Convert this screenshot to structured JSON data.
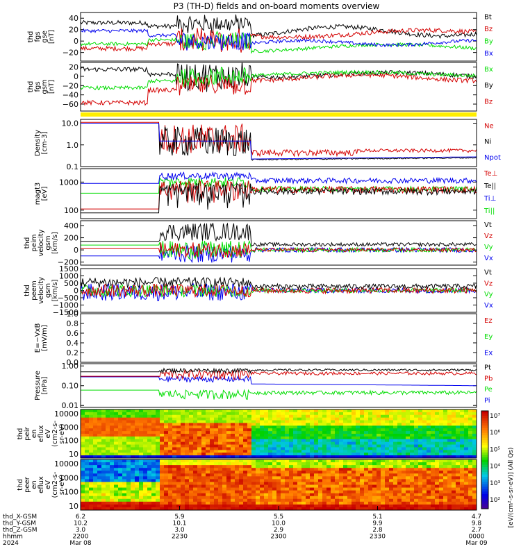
{
  "title": "P3 (TH-D) fields and on-board moments overview",
  "colors": {
    "black": "#000000",
    "red": "#d40000",
    "green": "#00dd00",
    "blue": "#0000ee",
    "yellow": "#ffee00"
  },
  "chart_data": [
    {
      "id": "fgs_gse",
      "type": "line",
      "ylabel": [
        "thd",
        "fgs",
        "gse",
        "[nT]"
      ],
      "yticks": [
        "40",
        "20",
        "0",
        "−20"
      ],
      "ylim": [
        -35,
        50
      ],
      "legend": [
        {
          "name": "Bt",
          "color": "black"
        },
        {
          "name": "Bz",
          "color": "red"
        },
        {
          "name": "By",
          "color": "green"
        },
        {
          "name": "Bx",
          "color": "blue"
        }
      ]
    },
    {
      "id": "fgs_gsm",
      "type": "line",
      "ylabel": [
        "thd",
        "fgs",
        "gsm",
        "[nT]"
      ],
      "yticks": [
        "20",
        "0",
        "−20",
        "−40",
        "−60"
      ],
      "ylim": [
        -75,
        30
      ],
      "legend": [
        {
          "name": "Bx",
          "color": "green"
        },
        {
          "name": "By",
          "color": "black"
        },
        {
          "name": "Bz",
          "color": "red"
        }
      ]
    },
    {
      "id": "density",
      "type": "line",
      "ylabel": [
        "Density",
        "[cm-3]"
      ],
      "log": true,
      "yticks": [
        "10.0",
        "1.0",
        "0.1"
      ],
      "ylim": [
        0.1,
        15
      ],
      "legend": [
        {
          "name": "Ne",
          "color": "red"
        },
        {
          "name": "Ni",
          "color": "black"
        },
        {
          "name": "Npot",
          "color": "blue"
        }
      ]
    },
    {
      "id": "temperature",
      "type": "line",
      "ylabel": [
        "magt3",
        "[eV]"
      ],
      "log": true,
      "yticks": [
        "1000",
        "100"
      ],
      "ylim": [
        50,
        3000
      ],
      "legend": [
        {
          "name": "Te⊥",
          "color": "red"
        },
        {
          "name": "Te||",
          "color": "black"
        },
        {
          "name": "Ti⊥",
          "color": "blue"
        },
        {
          "name": "Ti||",
          "color": "green"
        }
      ]
    },
    {
      "id": "ion_velocity",
      "type": "line",
      "ylabel": [
        "thd",
        "peim",
        "velocity",
        "gsm",
        "[km/s]"
      ],
      "yticks": [
        "400",
        "200",
        "0",
        "−200"
      ],
      "ylim": [
        -250,
        480
      ],
      "legend": [
        {
          "name": "Vt",
          "color": "black"
        },
        {
          "name": "Vz",
          "color": "red"
        },
        {
          "name": "Vy",
          "color": "green"
        },
        {
          "name": "Vx",
          "color": "blue"
        }
      ]
    },
    {
      "id": "electron_velocity",
      "type": "line",
      "ylabel": [
        "thd",
        "peem",
        "velocity",
        "gsm",
        "[km/s]"
      ],
      "yticks": [
        "1500",
        "1000",
        "500",
        "0",
        "−500",
        "−1000",
        "−1500"
      ],
      "ylim": [
        -1500,
        1500
      ],
      "legend": [
        {
          "name": "Vt",
          "color": "black"
        },
        {
          "name": "Vz",
          "color": "red"
        },
        {
          "name": "Vy",
          "color": "green"
        },
        {
          "name": "Vx",
          "color": "blue"
        }
      ]
    },
    {
      "id": "efield",
      "type": "line",
      "ylabel": [
        "E=−VxB",
        "[mV/m]"
      ],
      "yticks": [
        "1.0",
        "0.8",
        "0.6",
        "0.4",
        "0.2",
        "0.0"
      ],
      "ylim": [
        0,
        1
      ],
      "legend": [
        {
          "name": "Ez",
          "color": "red"
        },
        {
          "name": "Ey",
          "color": "green"
        },
        {
          "name": "Ex",
          "color": "blue"
        }
      ]
    },
    {
      "id": "pressure",
      "type": "line",
      "ylabel": [
        "Pressure",
        "[nPa]"
      ],
      "log": true,
      "yticks": [
        "1.00",
        "0.10",
        "0.01"
      ],
      "ylim": [
        0.008,
        1.3
      ],
      "legend": [
        {
          "name": "Pt",
          "color": "black"
        },
        {
          "name": "Pb",
          "color": "red"
        },
        {
          "name": "Pe",
          "color": "green"
        },
        {
          "name": "Pi",
          "color": "blue"
        }
      ]
    },
    {
      "id": "ion_spectrogram",
      "type": "heatmap",
      "ylabel": [
        "thd",
        "peir",
        "en",
        "eflux",
        "eV",
        "(cm2-s-",
        "sr-eV)"
      ],
      "log": true,
      "yticks": [
        "10000",
        "1000",
        "100",
        "10"
      ],
      "ylim": [
        5,
        20000
      ]
    },
    {
      "id": "electron_spectrogram",
      "type": "heatmap",
      "ylabel": [
        "thd",
        "peer",
        "en",
        "eflux",
        "eV",
        "(cm2-s-",
        "sr-eV)"
      ],
      "log": true,
      "yticks": [
        "10000",
        "1000",
        "100",
        "10"
      ],
      "ylim": [
        5,
        20000
      ]
    }
  ],
  "colorbar": {
    "ticks": [
      "10⁷",
      "10⁶",
      "10⁵",
      "10⁴",
      "10³",
      "10²"
    ],
    "label": "[eV/(cm²-s-sr-eV)] (All Qs)"
  },
  "xaxis": {
    "rows": [
      {
        "label": "thd_X-GSM",
        "values": [
          "6.2",
          "5.9",
          "5.5",
          "5.1",
          "4.7"
        ]
      },
      {
        "label": "thd_Y-GSM",
        "values": [
          "10.2",
          "10.1",
          "10.0",
          "9.9",
          "9.8"
        ]
      },
      {
        "label": "thd_Z-GSM",
        "values": [
          "3.0",
          "3.0",
          "2.9",
          "2.8",
          "2.7"
        ]
      },
      {
        "label": "hhmm",
        "values": [
          "2200",
          "2230",
          "2300",
          "2330",
          "0000"
        ]
      },
      {
        "label": "2024",
        "values": [
          "Mar 08",
          "",
          "",
          "",
          "Mar 09"
        ]
      }
    ]
  }
}
